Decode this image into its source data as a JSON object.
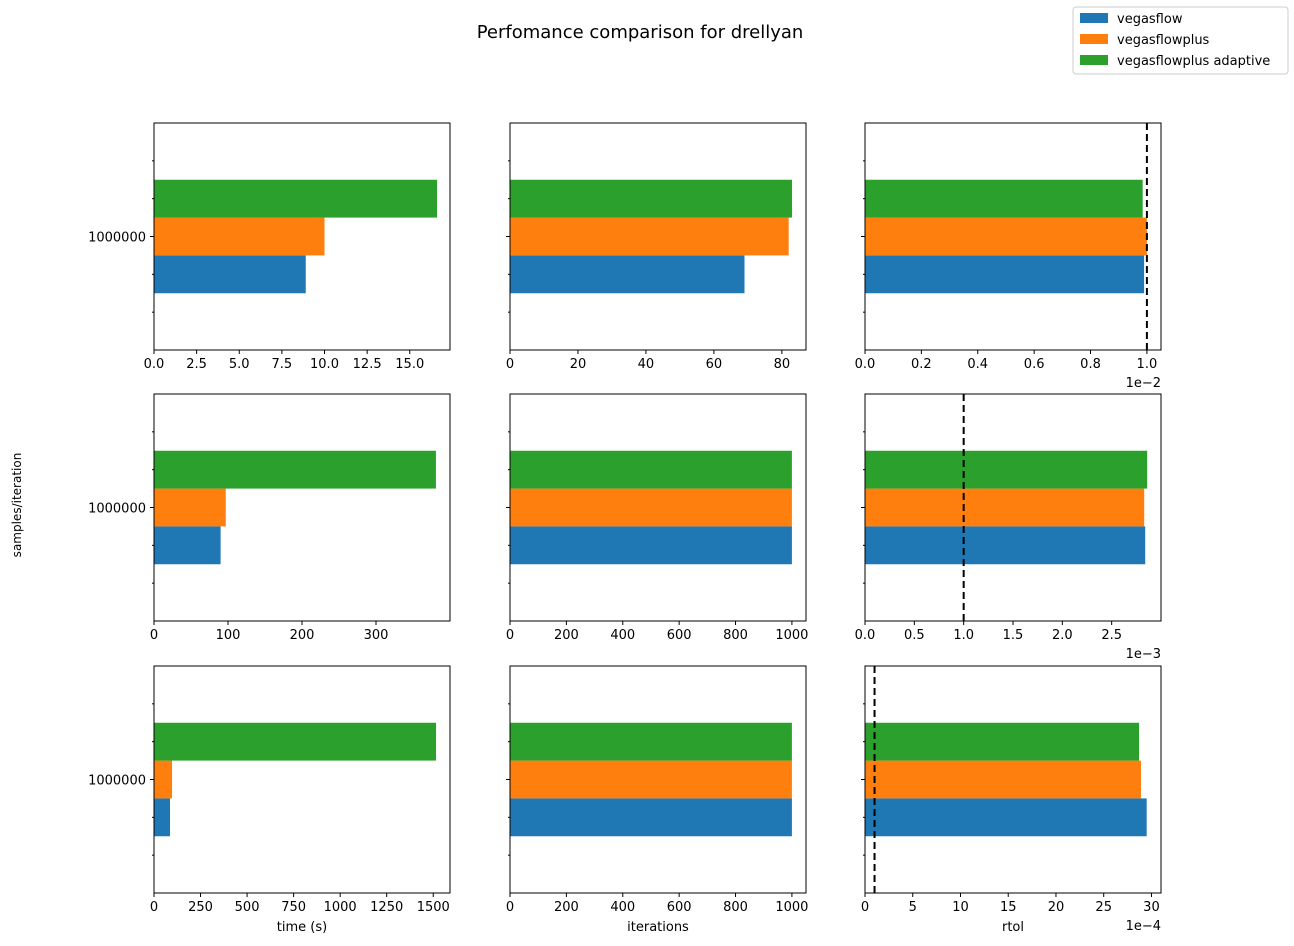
{
  "figure": {
    "title": "Perfomance comparison for drellyan",
    "ylabel": "samples/iteration"
  },
  "legend": {
    "placement": "top-right",
    "entries": [
      {
        "label": "vegasflow",
        "color": "#1f77b4"
      },
      {
        "label": "vegasflowplus",
        "color": "#ff7f0e"
      },
      {
        "label": "vegasflowplus adaptive",
        "color": "#2ca02c"
      }
    ]
  },
  "chart_data": [
    {
      "type": "bar",
      "orientation": "horizontal",
      "row": 0,
      "col": 0,
      "categories": [
        "1000000"
      ],
      "xlim": [
        0,
        17.36
      ],
      "ylim": [
        -1.5,
        1.5
      ],
      "xticks": [
        0,
        2.5,
        5,
        7.5,
        10,
        12.5,
        15
      ],
      "xticklabels": [
        "0.0",
        "2.5",
        "5.0",
        "7.5",
        "10.0",
        "12.5",
        "15.0"
      ],
      "xlabel": "",
      "offset_text": "",
      "reference_line": null,
      "series": [
        {
          "name": "vegasflow",
          "values": [
            8.9
          ]
        },
        {
          "name": "vegasflowplus",
          "values": [
            10.0
          ]
        },
        {
          "name": "vegasflowplus adaptive",
          "values": [
            16.6
          ]
        }
      ]
    },
    {
      "type": "bar",
      "orientation": "horizontal",
      "row": 0,
      "col": 1,
      "categories": [
        "1000000"
      ],
      "xlim": [
        0,
        87.1
      ],
      "ylim": [
        -1.5,
        1.5
      ],
      "xticks": [
        0,
        20,
        40,
        60,
        80
      ],
      "xticklabels": [
        "0",
        "20",
        "40",
        "60",
        "80"
      ],
      "xlabel": "",
      "offset_text": "",
      "reference_line": null,
      "series": [
        {
          "name": "vegasflow",
          "values": [
            69
          ]
        },
        {
          "name": "vegasflowplus",
          "values": [
            82
          ]
        },
        {
          "name": "vegasflowplus adaptive",
          "values": [
            83
          ]
        }
      ]
    },
    {
      "type": "bar",
      "orientation": "horizontal",
      "row": 0,
      "col": 2,
      "categories": [
        "1000000"
      ],
      "xlim": [
        0,
        1.05
      ],
      "ylim": [
        -1.5,
        1.5
      ],
      "xticks": [
        0,
        0.2,
        0.4,
        0.6,
        0.8,
        1.0
      ],
      "xticklabels": [
        "0.0",
        "0.2",
        "0.4",
        "0.6",
        "0.8",
        "1.0"
      ],
      "xlabel": "",
      "offset_text": "1e−2",
      "reference_line": 1.0,
      "series": [
        {
          "name": "vegasflow",
          "values": [
            0.99
          ]
        },
        {
          "name": "vegasflowplus",
          "values": [
            1.0
          ]
        },
        {
          "name": "vegasflowplus adaptive",
          "values": [
            0.985
          ]
        }
      ]
    },
    {
      "type": "bar",
      "orientation": "horizontal",
      "row": 1,
      "col": 0,
      "categories": [
        "1000000"
      ],
      "xlim": [
        0,
        400
      ],
      "ylim": [
        -1.5,
        1.5
      ],
      "xticks": [
        0,
        100,
        200,
        300
      ],
      "xticklabels": [
        "0",
        "100",
        "200",
        "300"
      ],
      "xlabel": "",
      "offset_text": "",
      "reference_line": null,
      "series": [
        {
          "name": "vegasflow",
          "values": [
            90
          ]
        },
        {
          "name": "vegasflowplus",
          "values": [
            97
          ]
        },
        {
          "name": "vegasflowplus adaptive",
          "values": [
            381
          ]
        }
      ]
    },
    {
      "type": "bar",
      "orientation": "horizontal",
      "row": 1,
      "col": 1,
      "categories": [
        "1000000"
      ],
      "xlim": [
        0,
        1050
      ],
      "ylim": [
        -1.5,
        1.5
      ],
      "xticks": [
        0,
        200,
        400,
        600,
        800,
        1000
      ],
      "xticklabels": [
        "0",
        "200",
        "400",
        "600",
        "800",
        "1000"
      ],
      "xlabel": "",
      "offset_text": "",
      "reference_line": null,
      "series": [
        {
          "name": "vegasflow",
          "values": [
            1000
          ]
        },
        {
          "name": "vegasflowplus",
          "values": [
            1000
          ]
        },
        {
          "name": "vegasflowplus adaptive",
          "values": [
            1000
          ]
        }
      ]
    },
    {
      "type": "bar",
      "orientation": "horizontal",
      "row": 1,
      "col": 2,
      "categories": [
        "1000000"
      ],
      "xlim": [
        0,
        3.0
      ],
      "ylim": [
        -1.5,
        1.5
      ],
      "xticks": [
        0,
        0.5,
        1.0,
        1.5,
        2.0,
        2.5
      ],
      "xticklabels": [
        "0.0",
        "0.5",
        "1.0",
        "1.5",
        "2.0",
        "2.5"
      ],
      "xlabel": "",
      "offset_text": "1e−3",
      "reference_line": 1.0,
      "series": [
        {
          "name": "vegasflow",
          "values": [
            2.84
          ]
        },
        {
          "name": "vegasflowplus",
          "values": [
            2.83
          ]
        },
        {
          "name": "vegasflowplus adaptive",
          "values": [
            2.86
          ]
        }
      ]
    },
    {
      "type": "bar",
      "orientation": "horizontal",
      "row": 2,
      "col": 0,
      "categories": [
        "1000000"
      ],
      "xlim": [
        0,
        1590
      ],
      "ylim": [
        -1.5,
        1.5
      ],
      "xticks": [
        0,
        250,
        500,
        750,
        1000,
        1250,
        1500
      ],
      "xticklabels": [
        "0",
        "250",
        "500",
        "750",
        "1000",
        "1250",
        "1500"
      ],
      "xlabel": "time (s)",
      "offset_text": "",
      "reference_line": null,
      "series": [
        {
          "name": "vegasflow",
          "values": [
            86
          ]
        },
        {
          "name": "vegasflowplus",
          "values": [
            97
          ]
        },
        {
          "name": "vegasflowplus adaptive",
          "values": [
            1515
          ]
        }
      ]
    },
    {
      "type": "bar",
      "orientation": "horizontal",
      "row": 2,
      "col": 1,
      "categories": [
        "1000000"
      ],
      "xlim": [
        0,
        1050
      ],
      "ylim": [
        -1.5,
        1.5
      ],
      "xticks": [
        0,
        200,
        400,
        600,
        800,
        1000
      ],
      "xticklabels": [
        "0",
        "200",
        "400",
        "600",
        "800",
        "1000"
      ],
      "xlabel": "iterations",
      "offset_text": "",
      "reference_line": null,
      "series": [
        {
          "name": "vegasflow",
          "values": [
            1000
          ]
        },
        {
          "name": "vegasflowplus",
          "values": [
            1000
          ]
        },
        {
          "name": "vegasflowplus adaptive",
          "values": [
            1000
          ]
        }
      ]
    },
    {
      "type": "bar",
      "orientation": "horizontal",
      "row": 2,
      "col": 2,
      "categories": [
        "1000000"
      ],
      "xlim": [
        0,
        31
      ],
      "ylim": [
        -1.5,
        1.5
      ],
      "xticks": [
        0,
        5,
        10,
        15,
        20,
        25,
        30
      ],
      "xticklabels": [
        "0",
        "5",
        "10",
        "15",
        "20",
        "25",
        "30"
      ],
      "xlabel": "rtol",
      "offset_text": "1e−4",
      "reference_line": 1.0,
      "series": [
        {
          "name": "vegasflow",
          "values": [
            29.5
          ]
        },
        {
          "name": "vegasflowplus",
          "values": [
            28.9
          ]
        },
        {
          "name": "vegasflowplus adaptive",
          "values": [
            28.7
          ]
        }
      ]
    }
  ]
}
